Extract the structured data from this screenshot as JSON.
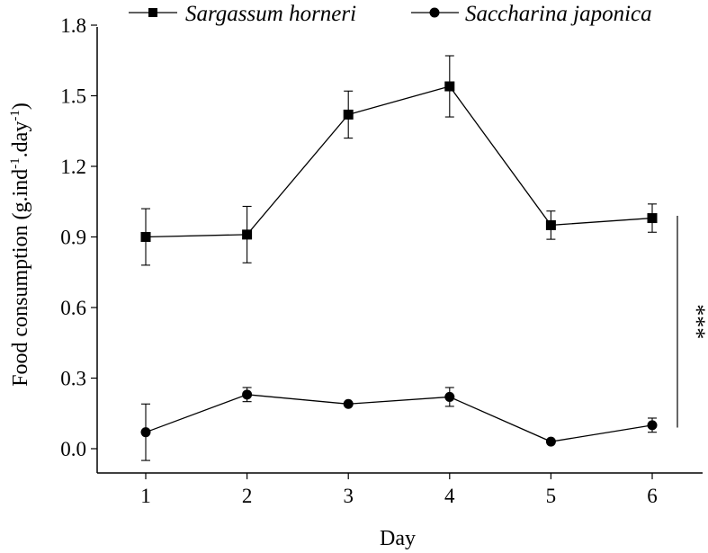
{
  "chart_data": {
    "type": "line",
    "title": "",
    "xlabel": "Day",
    "ylabel": {
      "base": "Food consumption (g.ind",
      "sup1": "-1",
      "mid": ".day",
      "sup2": "-1",
      "end": ")"
    },
    "x": [
      1,
      2,
      3,
      4,
      5,
      6
    ],
    "x_ticks": [
      "1",
      "2",
      "3",
      "4",
      "5",
      "6"
    ],
    "y_ticks": [
      "0.0",
      "0.3",
      "0.6",
      "0.9",
      "1.2",
      "1.5",
      "1.8"
    ],
    "ylim": [
      -0.1,
      1.8
    ],
    "legend_position": "top",
    "series": [
      {
        "name": "Sargassum horneri",
        "marker": "square",
        "values": [
          0.9,
          0.91,
          1.42,
          1.54,
          0.95,
          0.98
        ],
        "errors": [
          0.12,
          0.12,
          0.1,
          0.13,
          0.06,
          0.06
        ]
      },
      {
        "name": "Saccharina japonica",
        "marker": "circle",
        "values": [
          0.07,
          0.23,
          0.19,
          0.22,
          0.03,
          0.1
        ],
        "errors": [
          0.12,
          0.03,
          0.0,
          0.04,
          0.0,
          0.03
        ]
      }
    ],
    "annotation": {
      "text": "***",
      "y_range": [
        0.09,
        0.99
      ]
    },
    "colors": {
      "ink": "#000000",
      "background": "#ffffff"
    }
  }
}
